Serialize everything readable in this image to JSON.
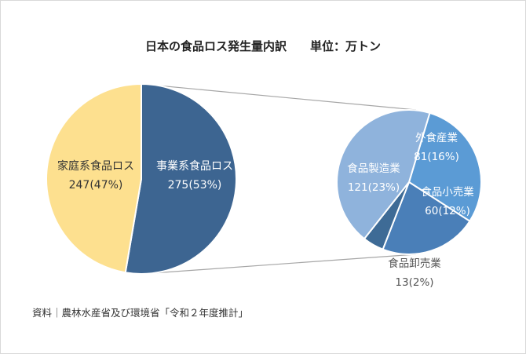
{
  "chart_data": {
    "type": "pie",
    "title": "日本の食品ロス発生量内訳　　単位：万トン",
    "source": "資料｜農林水産省及び環境省「令和２年度推計」",
    "main_pie": {
      "slices": [
        {
          "name": "事業系食品ロス",
          "value": 275,
          "label": "275(53%)",
          "color": "#3d6591"
        },
        {
          "name": "家庭系食品ロス",
          "value": 247,
          "label": "247(47%)",
          "color": "#fde08f"
        }
      ]
    },
    "breakdown_pie": {
      "of": "事業系食品ロス",
      "slices": [
        {
          "name": "外食産業",
          "value": 81,
          "label": "81(16%)",
          "color": "#5b9bd5"
        },
        {
          "name": "食品小売業",
          "value": 60,
          "label": "60(12%)",
          "color": "#4a7fb8"
        },
        {
          "name": "食品卸売業",
          "value": 13,
          "label": "13(2%)",
          "color": "#3e6b96"
        },
        {
          "name": "食品製造業",
          "value": 121,
          "label": "121(23%)",
          "color": "#8fb3dc"
        }
      ]
    },
    "legend": "none"
  }
}
